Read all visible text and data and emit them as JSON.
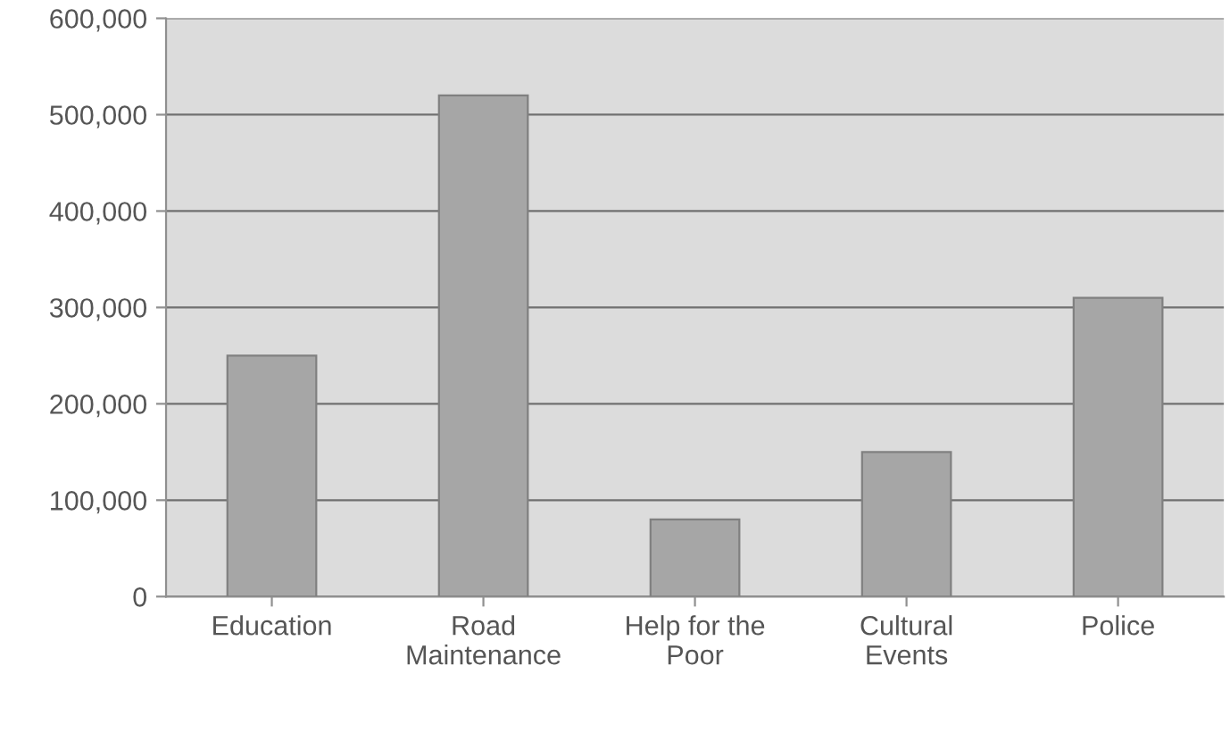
{
  "chart_data": {
    "type": "bar",
    "categories": [
      "Education",
      "Road\nMaintenance",
      "Help for the\nPoor",
      "Cultural\nEvents",
      "Police"
    ],
    "values": [
      250000,
      520000,
      80000,
      150000,
      310000
    ],
    "color": "#a6a6a6",
    "ylim": [
      0,
      600000
    ],
    "yticks": [
      {
        "value": 0,
        "label": "0"
      },
      {
        "value": 100000,
        "label": "100,000"
      },
      {
        "value": 200000,
        "label": "200,000"
      },
      {
        "value": 300000,
        "label": "300,000"
      },
      {
        "value": 400000,
        "label": "400,000"
      },
      {
        "value": 500000,
        "label": "500,000"
      },
      {
        "value": 600000,
        "label": "600,000"
      }
    ],
    "grid": "y"
  }
}
